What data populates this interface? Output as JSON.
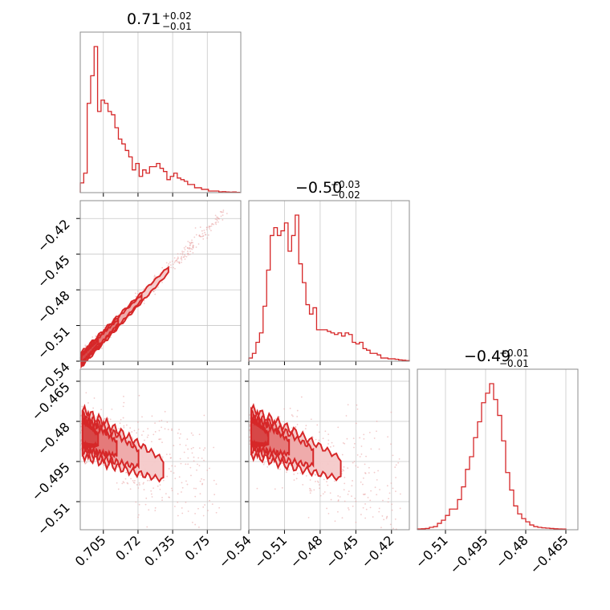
{
  "chart_data": [
    {
      "type": "corner-histogram",
      "panel": "hist-0",
      "title": {
        "value": "0.71",
        "plus": "+0.02",
        "minus": "−0.01"
      },
      "xlim": [
        0.695,
        0.7645
      ],
      "xticks": [
        0.705,
        0.72,
        0.735,
        0.75
      ],
      "bins": [
        [
          0.695,
          0.06
        ],
        [
          0.6965,
          0.12
        ],
        [
          0.698,
          0.55
        ],
        [
          0.6995,
          0.72
        ],
        [
          0.701,
          0.9
        ],
        [
          0.7025,
          0.5
        ],
        [
          0.704,
          0.57
        ],
        [
          0.7055,
          0.55
        ],
        [
          0.707,
          0.5
        ],
        [
          0.7085,
          0.48
        ],
        [
          0.71,
          0.4
        ],
        [
          0.7115,
          0.33
        ],
        [
          0.713,
          0.3
        ],
        [
          0.7145,
          0.26
        ],
        [
          0.716,
          0.22
        ],
        [
          0.7175,
          0.14
        ],
        [
          0.719,
          0.18
        ],
        [
          0.7205,
          0.1
        ],
        [
          0.722,
          0.14
        ],
        [
          0.7235,
          0.12
        ],
        [
          0.725,
          0.16
        ],
        [
          0.7265,
          0.16
        ],
        [
          0.728,
          0.18
        ],
        [
          0.7295,
          0.15
        ],
        [
          0.731,
          0.13
        ],
        [
          0.7325,
          0.08
        ],
        [
          0.734,
          0.1
        ],
        [
          0.7355,
          0.12
        ],
        [
          0.737,
          0.09
        ],
        [
          0.7385,
          0.08
        ],
        [
          0.74,
          0.07
        ],
        [
          0.7415,
          0.05
        ],
        [
          0.743,
          0.05
        ],
        [
          0.7445,
          0.03
        ],
        [
          0.746,
          0.03
        ],
        [
          0.7475,
          0.02
        ],
        [
          0.749,
          0.02
        ],
        [
          0.7505,
          0.01
        ],
        [
          0.752,
          0.01
        ],
        [
          0.7535,
          0.01
        ],
        [
          0.755,
          0.005
        ],
        [
          0.7565,
          0.006
        ],
        [
          0.758,
          0.004
        ],
        [
          0.7595,
          0.003
        ],
        [
          0.761,
          0.004
        ],
        [
          0.7625,
          0.002
        ]
      ]
    },
    {
      "type": "corner-scatter-contour",
      "panel": "scatter-1-0",
      "xlim": [
        0.695,
        0.7645
      ],
      "ylim": [
        -0.54,
        -0.405
      ],
      "xticks": [
        0.705,
        0.72,
        0.735,
        0.75
      ],
      "yticks": [
        -0.54,
        -0.51,
        -0.48,
        -0.45,
        -0.42
      ]
    },
    {
      "type": "corner-histogram",
      "panel": "hist-1",
      "title": {
        "value": "−0.50",
        "plus": "+0.03",
        "minus": "−0.02"
      },
      "xlim": [
        -0.54,
        -0.405
      ],
      "xticks": [
        -0.54,
        -0.51,
        -0.48,
        -0.45,
        -0.42
      ],
      "bins": [
        [
          -0.54,
          0.02
        ],
        [
          -0.537,
          0.05
        ],
        [
          -0.534,
          0.12
        ],
        [
          -0.531,
          0.18
        ],
        [
          -0.528,
          0.35
        ],
        [
          -0.525,
          0.58
        ],
        [
          -0.522,
          0.8
        ],
        [
          -0.519,
          0.85
        ],
        [
          -0.516,
          0.8
        ],
        [
          -0.513,
          0.83
        ],
        [
          -0.51,
          0.88
        ],
        [
          -0.507,
          0.7
        ],
        [
          -0.504,
          0.8
        ],
        [
          -0.501,
          0.93
        ],
        [
          -0.498,
          0.62
        ],
        [
          -0.495,
          0.5
        ],
        [
          -0.492,
          0.36
        ],
        [
          -0.489,
          0.3
        ],
        [
          -0.486,
          0.34
        ],
        [
          -0.483,
          0.2
        ],
        [
          -0.48,
          0.2
        ],
        [
          -0.477,
          0.2
        ],
        [
          -0.474,
          0.19
        ],
        [
          -0.471,
          0.18
        ],
        [
          -0.468,
          0.17
        ],
        [
          -0.465,
          0.18
        ],
        [
          -0.462,
          0.16
        ],
        [
          -0.459,
          0.18
        ],
        [
          -0.456,
          0.17
        ],
        [
          -0.453,
          0.12
        ],
        [
          -0.45,
          0.11
        ],
        [
          -0.447,
          0.12
        ],
        [
          -0.444,
          0.08
        ],
        [
          -0.441,
          0.07
        ],
        [
          -0.438,
          0.05
        ],
        [
          -0.435,
          0.05
        ],
        [
          -0.432,
          0.04
        ],
        [
          -0.429,
          0.02
        ],
        [
          -0.426,
          0.02
        ],
        [
          -0.423,
          0.015
        ],
        [
          -0.42,
          0.015
        ],
        [
          -0.417,
          0.012
        ],
        [
          -0.414,
          0.008
        ],
        [
          -0.411,
          0.006
        ],
        [
          -0.408,
          0.004
        ]
      ]
    },
    {
      "type": "corner-scatter-contour",
      "panel": "scatter-2-0",
      "xlim": [
        0.695,
        0.7645
      ],
      "ylim": [
        -0.5205,
        -0.4605
      ],
      "xticks": [
        0.705,
        0.72,
        0.735,
        0.75
      ],
      "yticks": [
        -0.465,
        -0.48,
        -0.495,
        -0.51
      ]
    },
    {
      "type": "corner-scatter-contour",
      "panel": "scatter-2-1",
      "xlim": [
        -0.54,
        -0.405
      ],
      "ylim": [
        -0.5205,
        -0.4605
      ],
      "xticks": [
        -0.54,
        -0.51,
        -0.48,
        -0.45,
        -0.42
      ],
      "yticks": [
        -0.465,
        -0.48,
        -0.495,
        -0.51
      ]
    },
    {
      "type": "corner-histogram",
      "panel": "hist-2",
      "title": {
        "value": "−0.49",
        "plus": "+0.01",
        "minus": "−0.01"
      },
      "xlim": [
        -0.5205,
        -0.4605
      ],
      "xticks": [
        -0.51,
        -0.495,
        -0.48,
        -0.465
      ],
      "bins": [
        [
          -0.5205,
          0.005
        ],
        [
          -0.519,
          0.006
        ],
        [
          -0.5175,
          0.008
        ],
        [
          -0.516,
          0.015
        ],
        [
          -0.5145,
          0.02
        ],
        [
          -0.513,
          0.04
        ],
        [
          -0.5115,
          0.06
        ],
        [
          -0.51,
          0.09
        ],
        [
          -0.5085,
          0.13
        ],
        [
          -0.507,
          0.13
        ],
        [
          -0.5055,
          0.19
        ],
        [
          -0.504,
          0.27
        ],
        [
          -0.5025,
          0.38
        ],
        [
          -0.501,
          0.46
        ],
        [
          -0.4995,
          0.58
        ],
        [
          -0.498,
          0.68
        ],
        [
          -0.4965,
          0.8
        ],
        [
          -0.495,
          0.86
        ],
        [
          -0.4935,
          0.92
        ],
        [
          -0.492,
          0.82
        ],
        [
          -0.4905,
          0.72
        ],
        [
          -0.489,
          0.56
        ],
        [
          -0.4875,
          0.36
        ],
        [
          -0.486,
          0.25
        ],
        [
          -0.4845,
          0.15
        ],
        [
          -0.483,
          0.1
        ],
        [
          -0.4815,
          0.07
        ],
        [
          -0.48,
          0.05
        ],
        [
          -0.4785,
          0.03
        ],
        [
          -0.477,
          0.02
        ],
        [
          -0.4755,
          0.015
        ],
        [
          -0.474,
          0.012
        ],
        [
          -0.4725,
          0.01
        ],
        [
          -0.471,
          0.008
        ],
        [
          -0.4695,
          0.006
        ],
        [
          -0.468,
          0.005
        ],
        [
          -0.4665,
          0.004
        ]
      ]
    }
  ]
}
